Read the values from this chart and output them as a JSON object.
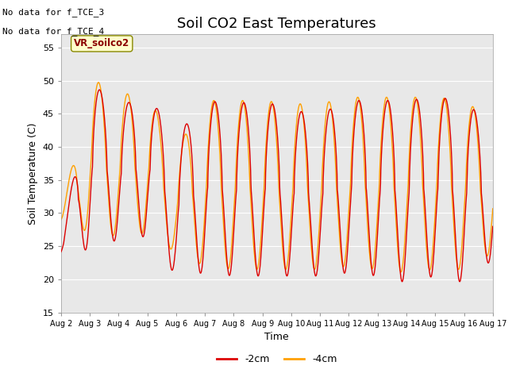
{
  "title": "Soil CO2 East Temperatures",
  "xlabel": "Time",
  "ylabel": "Soil Temperature (C)",
  "ylim": [
    15,
    57
  ],
  "yticks": [
    15,
    20,
    25,
    30,
    35,
    40,
    45,
    50,
    55
  ],
  "x_tick_labels": [
    "Aug 2",
    "Aug 3",
    "Aug 4",
    "Aug 5",
    "Aug 6",
    "Aug 7",
    "Aug 8",
    "Aug 9",
    "Aug 10",
    "Aug 11",
    "Aug 12",
    "Aug 13",
    "Aug 14",
    "Aug 15",
    "Aug 16",
    "Aug 17"
  ],
  "color_2cm": "#dd0000",
  "color_4cm": "#ffa000",
  "legend_label_2cm": "-2cm",
  "legend_label_4cm": "-4cm",
  "no_data_text": [
    "No data for f_TCE_3",
    "No data for f_TCE_4"
  ],
  "inset_label": "VR_soilco2",
  "background_color": "#e8e8e8",
  "title_fontsize": 13,
  "axis_fontsize": 9,
  "tick_fontsize": 8
}
